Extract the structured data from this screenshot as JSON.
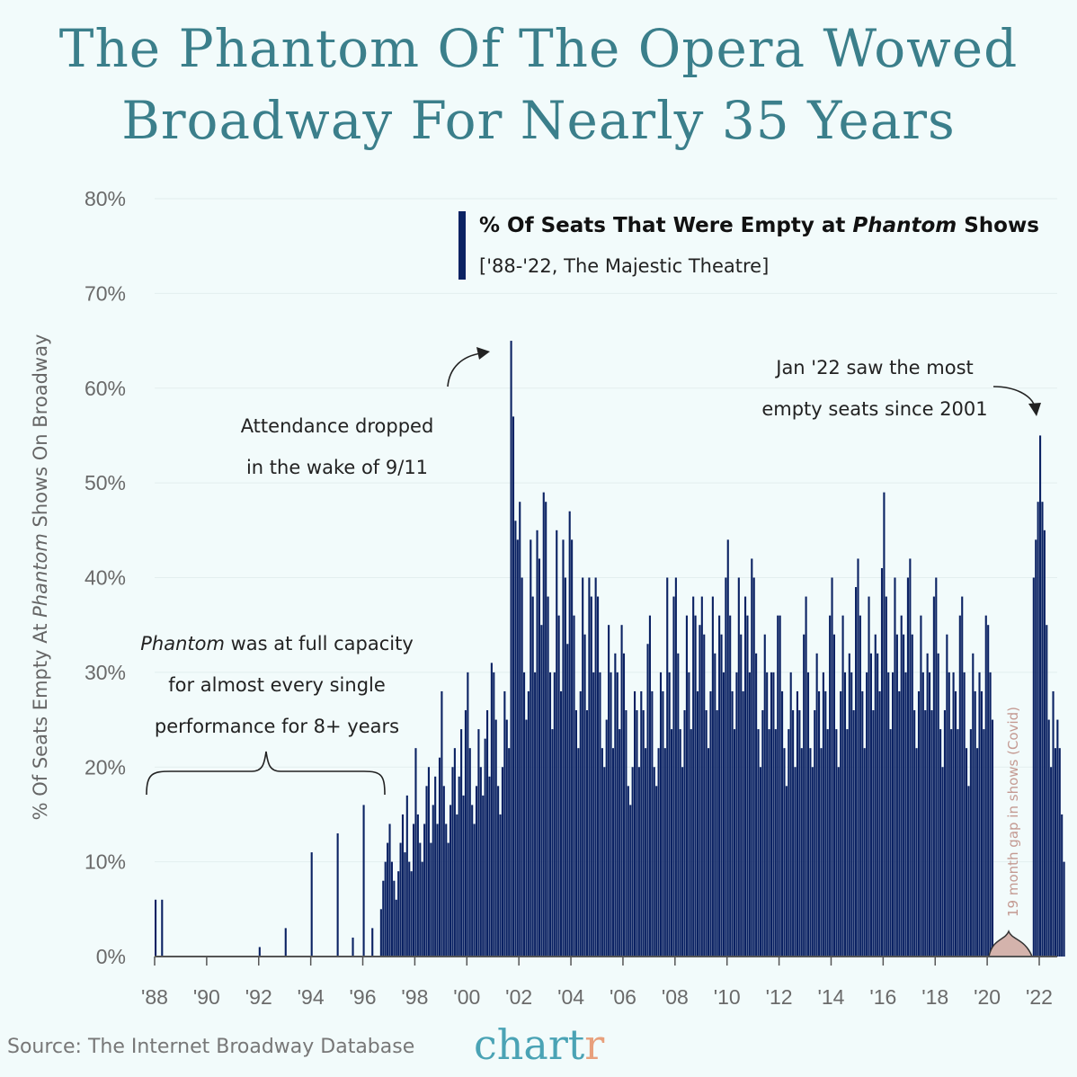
{
  "title_line1": "The Phantom Of The Opera Wowed",
  "title_line2": "Broadway For Nearly 35 Years",
  "source": "Source: The Internet Broadway Database",
  "brand": {
    "main": "chart",
    "accent": "r"
  },
  "colors": {
    "title": "#3b7f8b",
    "bars": "#0b2263",
    "background": "#f2fbfb",
    "covid_gap": "#d4b3ac",
    "brand": "#4aa3b5",
    "brand_accent": "#e8a07c"
  },
  "chart_data": {
    "type": "bar",
    "title": "% Of Seats That Were Empty at Phantom Shows",
    "title_parts": [
      "% Of Seats That Were Empty at ",
      "Phantom",
      " Shows"
    ],
    "subtitle": "['88-'22, The Majestic Theatre]",
    "ylabel_parts": [
      "% Of Seats Empty At ",
      "Phantom",
      " Shows On Broadway"
    ],
    "xlabel": "",
    "ylim": [
      0,
      80
    ],
    "yticks": [
      "0%",
      "10%",
      "20%",
      "30%",
      "40%",
      "50%",
      "60%",
      "70%",
      "80%"
    ],
    "xticks": [
      "'88",
      "'90",
      "'92",
      "'94",
      "'96",
      "'98",
      "'00",
      "'02",
      "'04",
      "'06",
      "'08",
      "'10",
      "'12",
      "'14",
      "'16",
      "'18",
      "'20",
      "'22"
    ],
    "grid": true,
    "legend": "top-right",
    "monthly_peak_pct_by_year": {
      "1988": [
        6,
        0,
        0,
        6,
        0,
        0,
        0,
        0,
        0,
        0,
        0,
        0
      ],
      "1989": [
        0,
        0,
        0,
        0,
        0,
        0,
        0,
        0,
        0,
        0,
        0,
        0
      ],
      "1990": [
        0,
        0,
        0,
        0,
        0,
        0,
        0,
        0,
        0,
        0,
        0,
        0
      ],
      "1991": [
        0,
        0,
        0,
        0,
        0,
        0,
        0,
        0,
        0,
        0,
        0,
        0
      ],
      "1992": [
        1,
        0,
        0,
        0,
        0,
        0,
        0,
        0,
        0,
        0,
        0,
        0
      ],
      "1993": [
        3,
        0,
        0,
        0,
        0,
        0,
        0,
        0,
        0,
        0,
        0,
        0
      ],
      "1994": [
        11,
        0,
        0,
        0,
        0,
        0,
        0,
        0,
        0,
        0,
        0,
        0
      ],
      "1995": [
        13,
        0,
        0,
        0,
        0,
        0,
        0,
        2,
        0,
        0,
        0,
        0
      ],
      "1996": [
        16,
        0,
        0,
        0,
        3,
        0,
        0,
        0,
        5,
        8,
        10,
        12
      ],
      "1997": [
        14,
        10,
        8,
        6,
        9,
        12,
        15,
        11,
        17,
        10,
        9,
        14
      ],
      "1998": [
        22,
        15,
        12,
        10,
        14,
        18,
        20,
        12,
        16,
        19,
        14,
        21
      ],
      "1999": [
        28,
        18,
        14,
        12,
        16,
        20,
        22,
        15,
        19,
        24,
        17,
        26
      ],
      "2000": [
        30,
        22,
        16,
        14,
        18,
        24,
        20,
        17,
        23,
        26,
        19,
        31
      ],
      "2001": [
        30,
        25,
        18,
        15,
        20,
        28,
        25,
        22,
        65,
        57,
        46,
        44
      ],
      "2002": [
        48,
        40,
        30,
        25,
        28,
        44,
        38,
        30,
        45,
        42,
        35,
        49
      ],
      "2003": [
        48,
        38,
        30,
        24,
        30,
        45,
        36,
        28,
        44,
        40,
        33,
        47
      ],
      "2004": [
        44,
        36,
        26,
        22,
        28,
        40,
        34,
        26,
        40,
        38,
        30,
        40
      ],
      "2005": [
        38,
        30,
        22,
        20,
        25,
        35,
        30,
        22,
        32,
        30,
        24,
        35
      ],
      "2006": [
        32,
        26,
        18,
        16,
        20,
        28,
        26,
        20,
        28,
        26,
        22,
        33
      ],
      "2007": [
        36,
        28,
        20,
        18,
        22,
        30,
        28,
        22,
        40,
        30,
        24,
        38
      ],
      "2008": [
        40,
        32,
        24,
        20,
        26,
        36,
        30,
        24,
        38,
        36,
        28,
        35
      ],
      "2009": [
        38,
        34,
        26,
        22,
        28,
        38,
        32,
        26,
        36,
        34,
        30,
        40
      ],
      "2010": [
        44,
        36,
        28,
        24,
        30,
        40,
        34,
        28,
        38,
        36,
        30,
        42
      ],
      "2011": [
        40,
        32,
        24,
        20,
        26,
        34,
        30,
        24,
        30,
        30,
        24,
        36
      ],
      "2012": [
        36,
        28,
        22,
        18,
        24,
        30,
        26,
        20,
        28,
        26,
        22,
        34
      ],
      "2013": [
        38,
        30,
        22,
        20,
        26,
        32,
        28,
        22,
        30,
        28,
        24,
        36
      ],
      "2014": [
        40,
        34,
        24,
        20,
        28,
        36,
        30,
        24,
        32,
        30,
        26,
        39
      ],
      "2015": [
        42,
        36,
        28,
        22,
        30,
        38,
        32,
        26,
        34,
        32,
        28,
        41
      ],
      "2016": [
        49,
        38,
        30,
        24,
        30,
        40,
        34,
        28,
        36,
        34,
        30,
        40
      ],
      "2017": [
        42,
        34,
        26,
        22,
        28,
        36,
        30,
        26,
        32,
        30,
        26,
        38
      ],
      "2018": [
        40,
        32,
        24,
        20,
        26,
        34,
        30,
        24,
        30,
        28,
        24,
        36
      ],
      "2019": [
        38,
        30,
        22,
        18,
        24,
        32,
        28,
        22,
        30,
        28,
        24,
        36
      ],
      "2020": [
        35,
        30,
        25,
        0,
        0,
        0,
        0,
        0,
        0,
        0,
        0,
        0
      ],
      "2021": [
        0,
        0,
        0,
        0,
        0,
        0,
        0,
        0,
        0,
        40,
        44,
        48
      ],
      "2022": [
        55,
        48,
        45,
        35,
        25,
        20,
        28,
        22,
        25,
        22,
        15,
        10
      ]
    },
    "annotations": {
      "full_capacity": [
        "",
        "Phantom",
        " was at full capacity",
        "for almost every single",
        "performance for 8+ years"
      ],
      "nine_eleven": [
        "Attendance dropped",
        "in the wake of 9/11"
      ],
      "jan22": [
        "Jan '22 saw the most",
        "empty seats since 2001"
      ],
      "covid_gap": "19 month gap in shows (Covid)"
    }
  }
}
